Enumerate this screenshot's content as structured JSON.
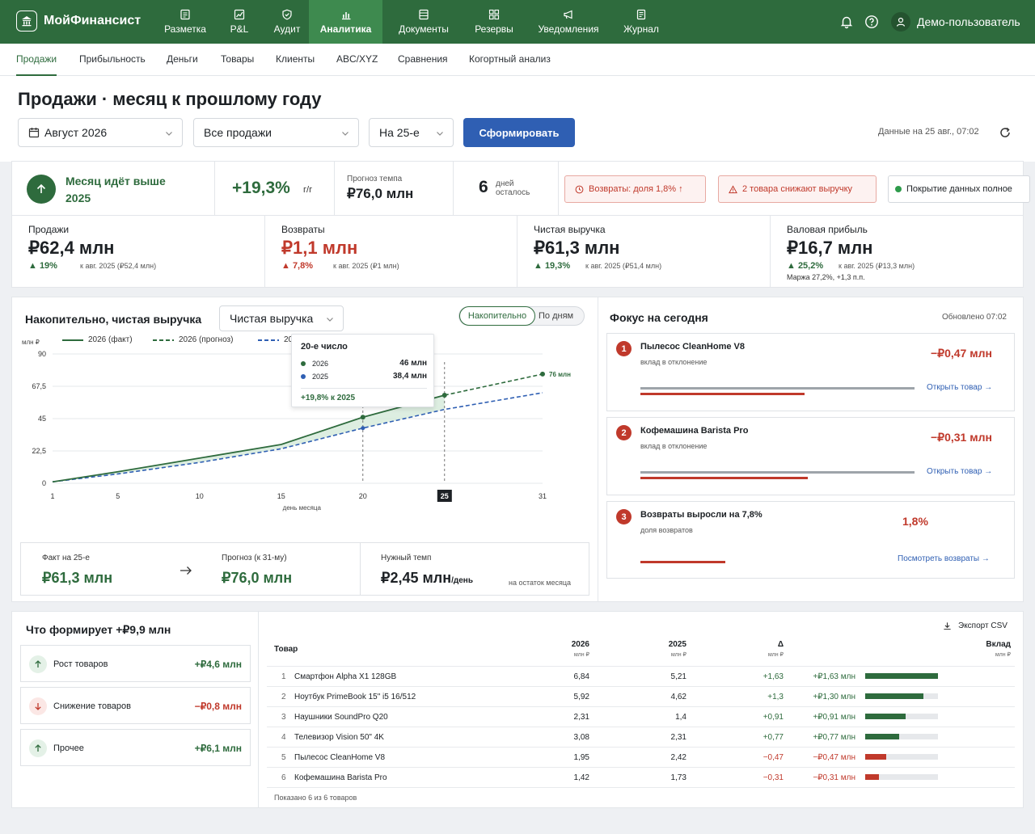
{
  "brand": "МойФинансист",
  "nav": [
    {
      "label": "Разметка",
      "icon": "markup-icon"
    },
    {
      "label": "P&L",
      "icon": "chart-icon"
    },
    {
      "label": "Аудит",
      "icon": "shield-icon"
    },
    {
      "label": "Аналитика",
      "icon": "bar-chart-icon",
      "active": true
    },
    {
      "label": "Документы",
      "icon": "document-icon"
    },
    {
      "label": "Резервы",
      "icon": "grid-icon"
    },
    {
      "label": "Уведомления",
      "icon": "megaphone-icon"
    },
    {
      "label": "Журнал",
      "icon": "journal-icon"
    }
  ],
  "user": "Демо-пользователь",
  "subnav": [
    "Продажи",
    "Прибыльность",
    "Деньги",
    "Товары",
    "Клиенты",
    "ABC/XYZ",
    "Сравнения",
    "Когортный анализ"
  ],
  "title": "Продажи · месяц к прошлому году",
  "filters": {
    "period": "Август 2026",
    "scope": "Все продажи",
    "cutoff": "На 25-е"
  },
  "generate": "Сформировать",
  "updated": "Данные на 25 авг., 07:02",
  "summary": {
    "status_line1": "Месяц идёт выше",
    "status_line2": "2025",
    "yoy": "+19,3%",
    "yoy_unit": "г/г",
    "forecast_label": "Прогноз темпа",
    "forecast": "₽76,0 млн",
    "days": "6",
    "days_l1": "дней",
    "days_l2": "осталось",
    "pills": [
      {
        "text": "Возвраты: доля 1,8% ↑",
        "tone": "red"
      },
      {
        "text": "2 товара снижают выручку",
        "tone": "red"
      },
      {
        "text": "Покрытие данных полное",
        "tone": "neutral"
      }
    ]
  },
  "kpis": [
    {
      "label": "Продажи",
      "value": "₽62,4 млн",
      "delta": "▲ 19%",
      "prev": "к авг. 2025 (₽52,4 млн)",
      "tone": "green"
    },
    {
      "label": "Возвраты",
      "value": "₽1,1 млн",
      "delta": "▲ 7,8%",
      "prev": "к авг. 2025 (₽1 млн)",
      "tone": "red"
    },
    {
      "label": "Чистая выручка",
      "value": "₽61,3 млн",
      "delta": "▲ 19,3%",
      "prev": "к авг. 2025 (₽51,4 млн)",
      "tone": "green"
    },
    {
      "label": "Валовая прибыль",
      "value": "₽16,7 млн",
      "delta": "▲ 25,2%",
      "prev": "к авг. 2025 (₽13,3 млн)",
      "tone": "green",
      "margin": "Маржа 27,2%, +1,3 п.п."
    }
  ],
  "chart": {
    "title": "Накопительно, чистая выручка",
    "metric": "Чистая выручка",
    "toggle_on": "Накопительно",
    "toggle_off": "По дням",
    "legend": [
      "2026 (факт)",
      "2026 (прогноз)",
      "20"
    ],
    "tooltip": {
      "title": "20-е число",
      "r1_label": "2026",
      "r1_val": "46 млн",
      "r2_label": "2025",
      "r2_val": "38,4 млн",
      "foot": "+19,8% к 2025"
    },
    "fact_label": "Факт на 25-е",
    "fact": "₽61,3 млн",
    "forecast_label": "Прогноз (к 31-му)",
    "forecast": "₽76,0 млн",
    "need_label": "Нужный темп",
    "need": "₽2,45 млн",
    "need_unit": "/день",
    "need_note": "на остаток месяца"
  },
  "chart_data": {
    "type": "line",
    "ylabel": "млн ₽",
    "xlabel": "день месяца",
    "ylim": [
      0,
      90
    ],
    "xlim": [
      1,
      31
    ],
    "yticks": [
      "0",
      "22,5",
      "45",
      "67,5",
      "90"
    ],
    "xticks": [
      "1",
      "5",
      "10",
      "15",
      "20",
      "25",
      "31"
    ],
    "highlight_tick": "25",
    "end_label": "76 млн",
    "series": [
      {
        "name": "2026 (факт)",
        "x": [
          1,
          5,
          10,
          15,
          20,
          25
        ],
        "y": [
          1,
          8,
          17.5,
          27,
          46,
          61.3
        ]
      },
      {
        "name": "2026 (прогноз)",
        "x": [
          25,
          31
        ],
        "y": [
          61.3,
          76
        ]
      },
      {
        "name": "2025",
        "x": [
          1,
          5,
          10,
          15,
          20,
          25,
          31
        ],
        "y": [
          1,
          6.5,
          14.5,
          24,
          38.4,
          51.4,
          63
        ]
      }
    ]
  },
  "focus": {
    "title": "Фокус на сегодня",
    "updated": "Обновлено 07:02",
    "items": [
      {
        "n": "1",
        "title": "Пылесос CleanHome V8",
        "sub": "вклад в отклонение",
        "value": "−₽0,47 млн",
        "link": "Открыть товар",
        "bar": 0.6
      },
      {
        "n": "2",
        "title": "Кофемашина Barista Pro",
        "sub": "вклад в отклонение",
        "value": "−₽0,31 млн",
        "link": "Открыть товар",
        "bar": 0.61
      },
      {
        "n": "3",
        "title": "Возвраты выросли на 7,8%",
        "sub": "доля возвратов",
        "value": "1,8%",
        "link": "Посмотреть возвраты",
        "bar": 0.31
      }
    ]
  },
  "drivers": {
    "title": "Что формирует +₽9,9 млн",
    "items": [
      {
        "label": "Рост товаров",
        "value": "+₽4,6 млн",
        "dir": "up"
      },
      {
        "label": "Снижение товаров",
        "value": "−₽0,8 млн",
        "dir": "down"
      },
      {
        "label": "Прочее",
        "value": "+₽6,1 млн",
        "dir": "up"
      }
    ]
  },
  "table": {
    "export": "Экспорт CSV",
    "h_product": "Товар",
    "h_2026": "2026",
    "h_2025": "2025",
    "h_delta": "Δ",
    "h_contrib": "Вклад",
    "unit": "млн ₽",
    "rows": [
      {
        "n": "1",
        "name": "Смартфон Alpha X1 128GB",
        "v26": "6,84",
        "v25": "5,21",
        "d": "+1,63",
        "c": "+₽1,63 млн",
        "bar": 1.0,
        "tone": "green"
      },
      {
        "n": "2",
        "name": "Ноутбук PrimeBook 15\" i5 16/512",
        "v26": "5,92",
        "v25": "4,62",
        "d": "+1,3",
        "c": "+₽1,30 млн",
        "bar": 0.8,
        "tone": "green"
      },
      {
        "n": "3",
        "name": "Наушники SoundPro Q20",
        "v26": "2,31",
        "v25": "1,4",
        "d": "+0,91",
        "c": "+₽0,91 млн",
        "bar": 0.56,
        "tone": "green"
      },
      {
        "n": "4",
        "name": "Телевизор Vision 50\" 4K",
        "v26": "3,08",
        "v25": "2,31",
        "d": "+0,77",
        "c": "+₽0,77 млн",
        "bar": 0.47,
        "tone": "green"
      },
      {
        "n": "5",
        "name": "Пылесос CleanHome V8",
        "v26": "1,95",
        "v25": "2,42",
        "d": "−0,47",
        "c": "−₽0,47 млн",
        "bar": 0.29,
        "tone": "red"
      },
      {
        "n": "6",
        "name": "Кофемашина Barista Pro",
        "v26": "1,42",
        "v25": "1,73",
        "d": "−0,31",
        "c": "−₽0,31 млн",
        "bar": 0.19,
        "tone": "red"
      }
    ],
    "footer": "Показано 6 из 6 товаров"
  },
  "colors": {
    "green": "#2e6b3d",
    "red": "#c0392b",
    "blue": "#2f5fb3"
  }
}
